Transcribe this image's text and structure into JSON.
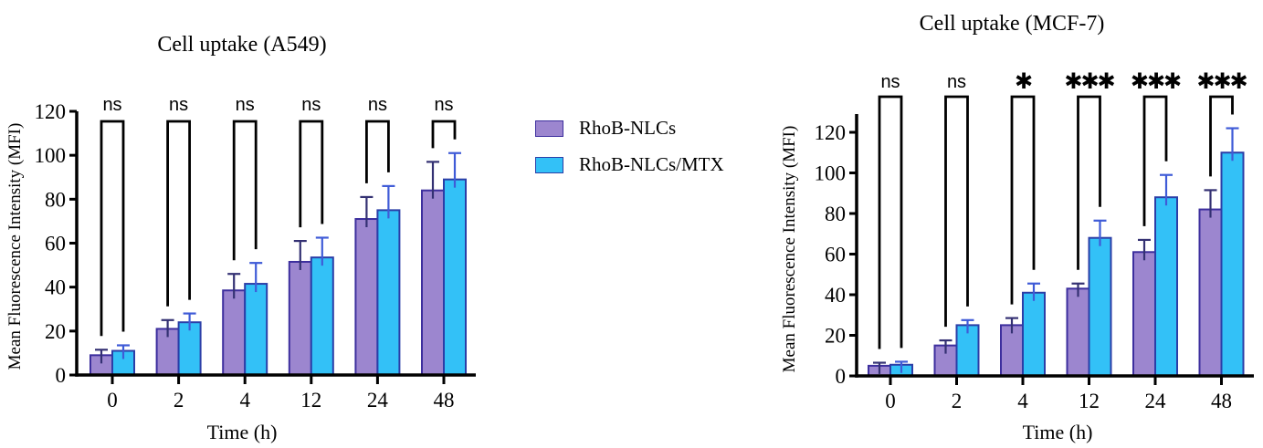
{
  "figure": {
    "background_color": "#FFFFFF",
    "text_color": "#000000",
    "axis_color": "#000000"
  },
  "legend": {
    "items": [
      {
        "label": "RhoB-NLCs",
        "color": "#9C86CF",
        "border": "#3D2F9E"
      },
      {
        "label": "RhoB-NLCs/MTX",
        "color": "#33C1F7",
        "border": "#2B3EA7"
      }
    ]
  },
  "chart_data": [
    {
      "id": "a549",
      "type": "bar",
      "title": "Cell uptake (A549)",
      "xlabel": "Time (h)",
      "ylabel": "Mean Fluorescence Intensity (MFI)",
      "categories": [
        "0",
        "2",
        "4",
        "12",
        "24",
        "48"
      ],
      "ylim": [
        0,
        120
      ],
      "yticks": [
        0,
        20,
        40,
        60,
        80,
        100,
        120
      ],
      "grid": false,
      "series": [
        {
          "name": "RhoB-NLCs",
          "color": "#9C86CF",
          "stroke": "#3D2F9E",
          "error_color": "#343173",
          "values": [
            9,
            21,
            38.5,
            51.5,
            71,
            84
          ],
          "errors": [
            2.5,
            4,
            7.5,
            9.5,
            10,
            13
          ]
        },
        {
          "name": "RhoB-NLCs/MTX",
          "color": "#33C1F7",
          "stroke": "#2B3EA7",
          "error_color": "#3F5BD7",
          "values": [
            11,
            24,
            41.5,
            53.5,
            75,
            89
          ],
          "errors": [
            2.5,
            4,
            9.5,
            9,
            11,
            12
          ]
        }
      ],
      "significance": [
        "ns",
        "ns",
        "ns",
        "ns",
        "ns",
        "ns"
      ]
    },
    {
      "id": "mcf7",
      "type": "bar",
      "title": "Cell uptake (MCF-7)",
      "xlabel": "Time (h)",
      "ylabel": "Mean Fluorescence Intensity (MFI)",
      "categories": [
        "0",
        "2",
        "4",
        "12",
        "24",
        "48"
      ],
      "ylim": [
        0,
        120
      ],
      "yticks": [
        0,
        20,
        40,
        60,
        80,
        100,
        120
      ],
      "grid": false,
      "series": [
        {
          "name": "RhoB-NLCs",
          "color": "#9C86CF",
          "stroke": "#3D2F9E",
          "error_color": "#343173",
          "values": [
            5,
            15,
            25,
            43,
            61,
            82
          ],
          "errors": [
            1.5,
            2.5,
            3.5,
            2.5,
            6,
            9.5
          ]
        },
        {
          "name": "RhoB-NLCs/MTX",
          "color": "#33C1F7",
          "stroke": "#2B3EA7",
          "error_color": "#3F5BD7",
          "values": [
            5.5,
            25,
            41,
            68,
            88,
            110
          ],
          "errors": [
            1.5,
            2.5,
            4.5,
            8.5,
            11,
            12
          ]
        }
      ],
      "significance": [
        "ns",
        "ns",
        "*",
        "***",
        "***",
        "***"
      ]
    }
  ]
}
